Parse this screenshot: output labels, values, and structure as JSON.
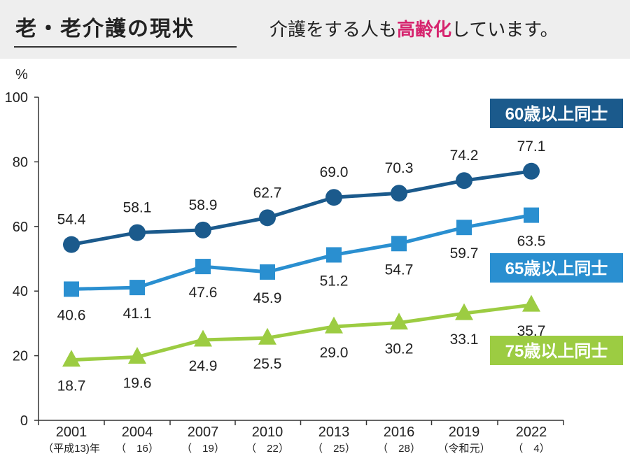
{
  "header": {
    "title": "老・老介護の現状",
    "subtitle_before": "介護をする人も",
    "subtitle_highlight": "高齢化",
    "subtitle_after": "しています。",
    "highlight_color": "#d6246e"
  },
  "chart_data": {
    "type": "line",
    "ylabel": "%",
    "ylim": [
      0,
      100
    ],
    "yticks": [
      0,
      20,
      40,
      60,
      80,
      100
    ],
    "categories": [
      "2001",
      "2004",
      "2007",
      "2010",
      "2013",
      "2016",
      "2019",
      "2022"
    ],
    "sublabels": [
      "（平成13)年",
      "（　16）",
      "（　19）",
      "（　22）",
      "（　25）",
      "（　28）",
      "（令和元）",
      "（　4）"
    ],
    "series": [
      {
        "name": "60歳以上同士",
        "values": [
          54.4,
          58.1,
          58.9,
          62.7,
          69.0,
          70.3,
          74.2,
          77.1
        ],
        "color": "#1b5a8c",
        "marker": "circle"
      },
      {
        "name": "65歳以上同士",
        "values": [
          40.6,
          41.1,
          47.6,
          45.9,
          51.2,
          54.7,
          59.7,
          63.5
        ],
        "color": "#2a8fd0",
        "marker": "square"
      },
      {
        "name": "75歳以上同士",
        "values": [
          18.7,
          19.6,
          24.9,
          25.5,
          29.0,
          30.2,
          33.1,
          35.7
        ],
        "color": "#9ccc42",
        "marker": "triangle"
      }
    ],
    "grid": false,
    "legend": "right"
  }
}
